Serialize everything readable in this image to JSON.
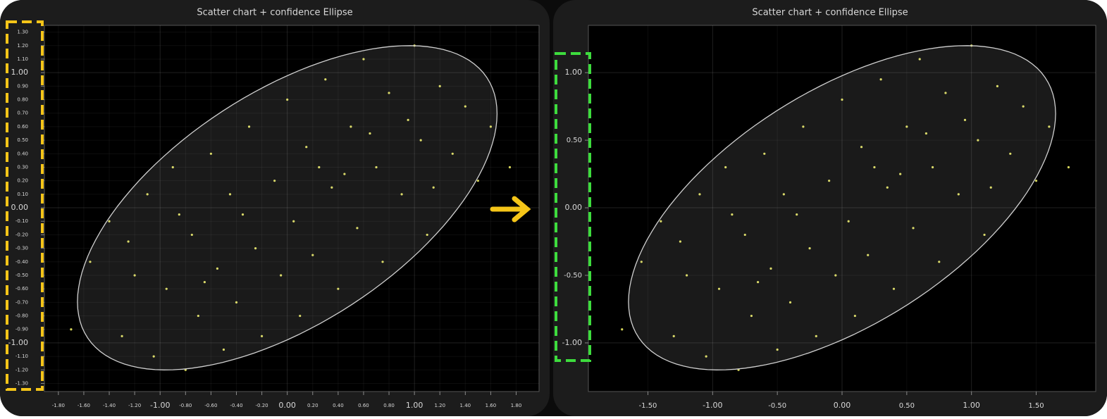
{
  "chart_data": [
    {
      "type": "scatter",
      "title": "Scatter chart + confidence Ellipse",
      "xlim": [
        -1.91,
        1.98
      ],
      "ylim": [
        -1.36,
        1.35
      ],
      "xticks": [
        {
          "value": -1.8,
          "label": "-1.80"
        },
        {
          "value": -1.6,
          "label": "-1.60"
        },
        {
          "value": -1.4,
          "label": "-1.40"
        },
        {
          "value": -1.2,
          "label": "-1.20"
        },
        {
          "value": -1,
          "label": "-1.00"
        },
        {
          "value": -0.8,
          "label": "-0.80"
        },
        {
          "value": -0.6,
          "label": "-0.60"
        },
        {
          "value": -0.4,
          "label": "-0.40"
        },
        {
          "value": -0.2,
          "label": "-0.20"
        },
        {
          "value": 0,
          "label": "0.00"
        },
        {
          "value": 0.2,
          "label": "0.20"
        },
        {
          "value": 0.4,
          "label": "0.40"
        },
        {
          "value": 0.6,
          "label": "0.60"
        },
        {
          "value": 0.8,
          "label": "0.80"
        },
        {
          "value": 1,
          "label": "1.00"
        },
        {
          "value": 1.2,
          "label": "1.20"
        },
        {
          "value": 1.4,
          "label": "1.40"
        },
        {
          "value": 1.6,
          "label": "1.60"
        },
        {
          "value": 1.8,
          "label": "1.80"
        }
      ],
      "yticks": [
        {
          "value": -1.3,
          "label": "-1.30"
        },
        {
          "value": -1.2,
          "label": "-1.20"
        },
        {
          "value": -1.1,
          "label": "-1.10"
        },
        {
          "value": -1,
          "label": "-1.00"
        },
        {
          "value": -0.9,
          "label": "-0.90"
        },
        {
          "value": -0.8,
          "label": "-0.80"
        },
        {
          "value": -0.7,
          "label": "-0.70"
        },
        {
          "value": -0.6,
          "label": "-0.60"
        },
        {
          "value": -0.5,
          "label": "-0.50"
        },
        {
          "value": -0.4,
          "label": "-0.40"
        },
        {
          "value": -0.3,
          "label": "-0.30"
        },
        {
          "value": -0.2,
          "label": "-0.20"
        },
        {
          "value": -0.1,
          "label": "-0.10"
        },
        {
          "value": 0,
          "label": "0.00"
        },
        {
          "value": 0.1,
          "label": "0.10"
        },
        {
          "value": 0.2,
          "label": "0.20"
        },
        {
          "value": 0.3,
          "label": "0.30"
        },
        {
          "value": 0.4,
          "label": "0.40"
        },
        {
          "value": 0.5,
          "label": "0.50"
        },
        {
          "value": 0.6,
          "label": "0.60"
        },
        {
          "value": 0.7,
          "label": "0.70"
        },
        {
          "value": 0.8,
          "label": "0.80"
        },
        {
          "value": 0.9,
          "label": "0.90"
        },
        {
          "value": 1,
          "label": "1.00"
        },
        {
          "value": 1.1,
          "label": "1.10"
        },
        {
          "value": 1.2,
          "label": "1.20"
        },
        {
          "value": 1.3,
          "label": "1.30"
        }
      ],
      "grid": true,
      "color": "#d6d65a",
      "x": [
        -1.7,
        -1.55,
        -1.4,
        -1.3,
        -1.2,
        -1.1,
        -1.05,
        -0.95,
        -0.9,
        -0.8,
        -0.75,
        -0.7,
        -0.6,
        -0.55,
        -0.5,
        -0.45,
        -0.4,
        -0.3,
        -0.25,
        -0.2,
        -0.1,
        -0.05,
        0,
        0.05,
        0.1,
        0.15,
        0.2,
        0.3,
        0.35,
        0.4,
        0.5,
        0.55,
        0.6,
        0.7,
        0.75,
        0.8,
        0.9,
        1.0,
        1.05,
        1.1,
        1.2,
        1.3,
        1.4,
        1.5,
        1.6,
        1.75,
        -0.85,
        -0.35,
        0.25,
        0.65,
        1.15,
        -1.25,
        -0.65,
        0.45,
        0.95
      ],
      "y": [
        -0.9,
        -0.4,
        -0.1,
        -0.95,
        -0.5,
        0.1,
        -1.1,
        -0.6,
        0.3,
        -1.2,
        -0.2,
        -0.8,
        0.4,
        -0.45,
        -1.05,
        0.1,
        -0.7,
        0.6,
        -0.3,
        -0.95,
        0.2,
        -0.5,
        0.8,
        -0.1,
        -0.8,
        0.45,
        -0.35,
        0.95,
        0.15,
        -0.6,
        0.6,
        -0.15,
        1.1,
        0.3,
        -0.4,
        0.85,
        0.1,
        1.2,
        0.5,
        -0.2,
        0.9,
        0.4,
        0.75,
        0.2,
        0.6,
        0.3,
        -0.05,
        -0.05,
        0.3,
        0.55,
        0.15,
        -0.25,
        -0.55,
        0.25,
        0.65
      ],
      "ellipse": {
        "center_x": 0,
        "center_y": 0,
        "x_extent": 1.65,
        "y_extent": 1.2,
        "correlation": 0.58,
        "color": "#d0d0d0"
      }
    },
    {
      "type": "scatter",
      "title": "Scatter chart + confidence Ellipse",
      "xlim": [
        -1.96,
        1.96
      ],
      "ylim": [
        -1.36,
        1.35
      ],
      "xticks": [
        {
          "value": -1.5,
          "label": "-1.50"
        },
        {
          "value": -1,
          "label": "-1.00"
        },
        {
          "value": -0.5,
          "label": "-0.50"
        },
        {
          "value": 0,
          "label": "0.00"
        },
        {
          "value": 0.5,
          "label": "0.50"
        },
        {
          "value": 1,
          "label": "1.00"
        },
        {
          "value": 1.5,
          "label": "1.50"
        }
      ],
      "yticks": [
        {
          "value": -1,
          "label": "-1.00"
        },
        {
          "value": -0.5,
          "label": "-0.50"
        },
        {
          "value": 0,
          "label": "0.00"
        },
        {
          "value": 0.5,
          "label": "0.50"
        },
        {
          "value": 1,
          "label": "1.00"
        }
      ],
      "grid": true,
      "color": "#d6d65a",
      "x": [
        -1.7,
        -1.55,
        -1.4,
        -1.3,
        -1.2,
        -1.1,
        -1.05,
        -0.95,
        -0.9,
        -0.8,
        -0.75,
        -0.7,
        -0.6,
        -0.55,
        -0.5,
        -0.45,
        -0.4,
        -0.3,
        -0.25,
        -0.2,
        -0.1,
        -0.05,
        0,
        0.05,
        0.1,
        0.15,
        0.2,
        0.3,
        0.35,
        0.4,
        0.5,
        0.55,
        0.6,
        0.7,
        0.75,
        0.8,
        0.9,
        1.0,
        1.05,
        1.1,
        1.2,
        1.3,
        1.4,
        1.5,
        1.6,
        1.75,
        -0.85,
        -0.35,
        0.25,
        0.65,
        1.15,
        -1.25,
        -0.65,
        0.45,
        0.95
      ],
      "y": [
        -0.9,
        -0.4,
        -0.1,
        -0.95,
        -0.5,
        0.1,
        -1.1,
        -0.6,
        0.3,
        -1.2,
        -0.2,
        -0.8,
        0.4,
        -0.45,
        -1.05,
        0.1,
        -0.7,
        0.6,
        -0.3,
        -0.95,
        0.2,
        -0.5,
        0.8,
        -0.1,
        -0.8,
        0.45,
        -0.35,
        0.95,
        0.15,
        -0.6,
        0.6,
        -0.15,
        1.1,
        0.3,
        -0.4,
        0.85,
        0.1,
        1.2,
        0.5,
        -0.2,
        0.9,
        0.4,
        0.75,
        0.2,
        0.6,
        0.3,
        -0.05,
        -0.05,
        0.3,
        0.55,
        0.15,
        -0.25,
        -0.55,
        0.25,
        0.65
      ],
      "ellipse": {
        "center_x": 0,
        "center_y": 0,
        "x_extent": 1.65,
        "y_extent": 1.2,
        "correlation": 0.58,
        "color": "#d0d0d0"
      }
    }
  ]
}
